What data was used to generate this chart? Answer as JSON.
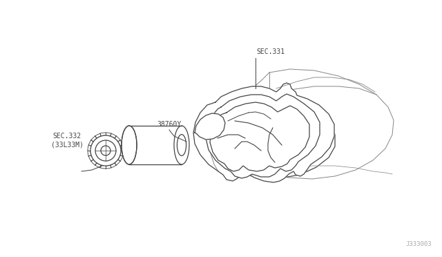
{
  "background_color": "#ffffff",
  "diagram_id": "J333003",
  "labels": {
    "sec331": "SEC.331",
    "part38760y": "38760Y",
    "sec332": "SEC.332\n(33L33M)"
  },
  "line_color": "#444444",
  "text_color": "#444444",
  "id_color": "#aaaaaa",
  "fig_width": 6.4,
  "fig_height": 3.72,
  "dpi": 100
}
